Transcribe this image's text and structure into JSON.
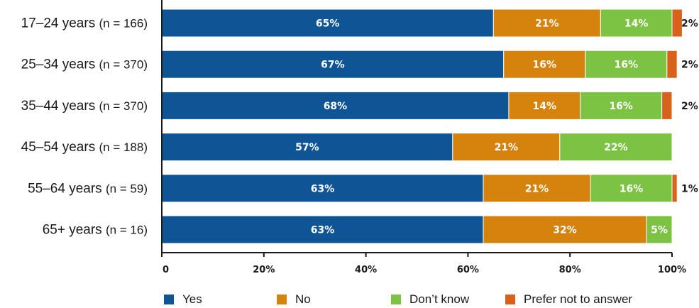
{
  "chart_data": {
    "type": "bar",
    "orientation": "horizontal",
    "stacked": true,
    "categories": [
      {
        "label": "17–24 years",
        "n": "(n = 166)"
      },
      {
        "label": "25–34 years",
        "n": "(n = 370)"
      },
      {
        "label": "35–44 years",
        "n": "(n = 370)"
      },
      {
        "label": "45–54 years",
        "n": "(n = 188)"
      },
      {
        "label": "55–64 years",
        "n": "(n = 59)"
      },
      {
        "label": "65+ years",
        "n": "(n = 16)"
      }
    ],
    "series": [
      {
        "name": "Yes",
        "color": "#0f5596",
        "values": [
          65,
          67,
          68,
          57,
          63,
          63
        ]
      },
      {
        "name": "No",
        "color": "#d5830d",
        "values": [
          21,
          16,
          14,
          21,
          21,
          32
        ]
      },
      {
        "name": "Don’t know",
        "color": "#7cc243",
        "values": [
          14,
          16,
          16,
          22,
          16,
          5
        ]
      },
      {
        "name": "Prefer not to answer",
        "color": "#d8621c",
        "values": [
          2,
          2,
          2,
          0,
          1,
          0
        ]
      }
    ],
    "xlim": [
      0,
      100
    ],
    "xticks": [
      "0",
      "20%",
      "40%",
      "60%",
      "80%",
      "100%"
    ],
    "grid": false,
    "legend_position": "bottom"
  }
}
